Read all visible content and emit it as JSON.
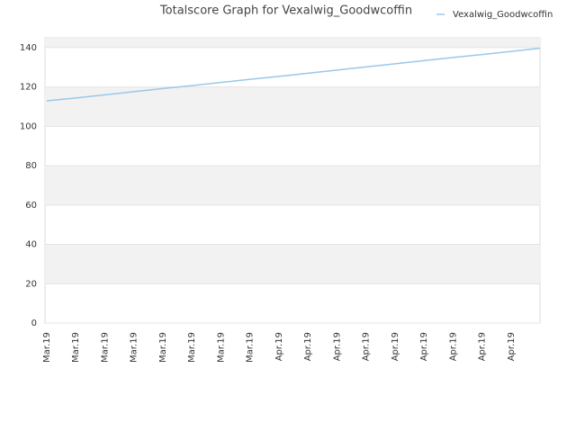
{
  "chart_data": {
    "type": "line",
    "title": "Totalscore Graph for Vexalwig_Goodwcoffin",
    "categories": [
      "Mar.19",
      "Mar.19",
      "Mar.19",
      "Mar.19",
      "Mar.19",
      "Mar.19",
      "Mar.19",
      "Mar.19",
      "Apr.19",
      "Apr.19",
      "Apr.19",
      "Apr.19",
      "Apr.19",
      "Apr.19",
      "Apr.19",
      "Apr.19",
      "Apr.19",
      null
    ],
    "series": [
      {
        "name": "Vexalwig_Goodwcoffin",
        "color": "#99c8ea",
        "values": [
          113,
          114.4,
          116,
          117.6,
          119.2,
          120.7,
          122.3,
          123.9,
          125.4,
          127,
          128.6,
          130.2,
          131.8,
          133.4,
          135,
          136.5,
          138.1,
          139.7
        ]
      }
    ],
    "ylim": [
      0,
      145
    ],
    "yticks": [
      0,
      20,
      40,
      60,
      80,
      100,
      120,
      140
    ],
    "grid": true,
    "legend": "top-right"
  }
}
